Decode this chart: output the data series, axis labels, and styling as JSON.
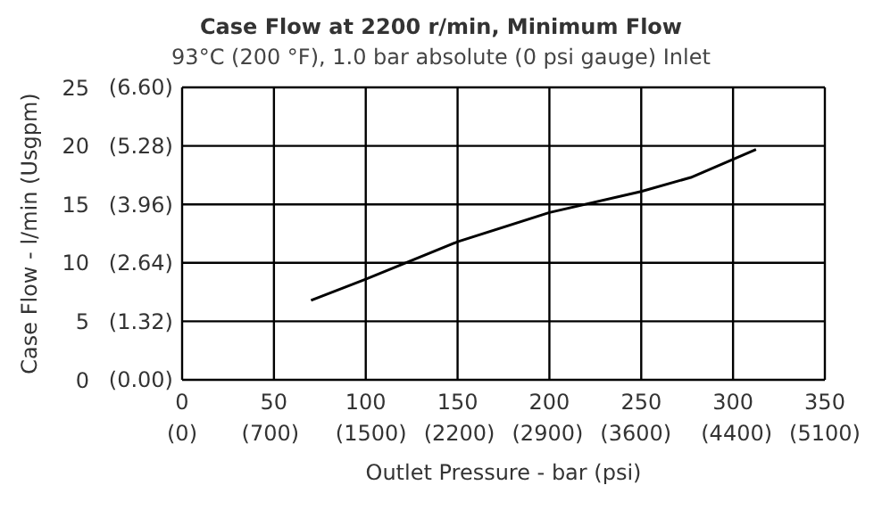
{
  "chart_data": {
    "type": "line",
    "title": "Case Flow at 2200 r/min, Minimum Flow",
    "subtitle": "93°C (200 °F), 1.0 bar absolute (0 psi gauge) Inlet",
    "xlabel": "Outlet Pressure - bar (psi)",
    "ylabel": "Case Flow - l/min (Usgpm)",
    "x": [
      70.2,
      100,
      150,
      200,
      250,
      277,
      312.5
    ],
    "series": [
      {
        "color": "#000000",
        "values": [
          6.8,
          8.6,
          11.8,
          14.3,
          16.1,
          17.3,
          19.7
        ]
      }
    ],
    "xlim": [
      0,
      350
    ],
    "xticks": [
      0,
      50,
      100,
      150,
      200,
      250,
      300,
      350
    ],
    "x2lim": [
      0,
      5100
    ],
    "x2ticks": [
      {
        "value": 0,
        "label": "(0)"
      },
      {
        "value": 700,
        "label": "(700)"
      },
      {
        "value": 1500,
        "label": "(1500)"
      },
      {
        "value": 2200,
        "label": "(2200)"
      },
      {
        "value": 2900,
        "label": "(2900)"
      },
      {
        "value": 3600,
        "label": "(3600)"
      },
      {
        "value": 4400,
        "label": "(4400)"
      },
      {
        "value": 5100,
        "label": "(5100)"
      }
    ],
    "ylim": [
      0,
      25
    ],
    "yticks": [
      0,
      5,
      10,
      15,
      20,
      25
    ],
    "y2lim": [
      0,
      6.6
    ],
    "y2ticks": [
      {
        "value": 0,
        "label": "(0.00)"
      },
      {
        "value": 1.32,
        "label": "(1.32)"
      },
      {
        "value": 2.64,
        "label": "(2.64)"
      },
      {
        "value": 3.96,
        "label": "(3.96)"
      },
      {
        "value": 5.28,
        "label": "(5.28)"
      },
      {
        "value": 6.6,
        "label": "(6.60)"
      }
    ],
    "grid": true,
    "legend": false,
    "marker": "none",
    "line_style": "solid"
  }
}
